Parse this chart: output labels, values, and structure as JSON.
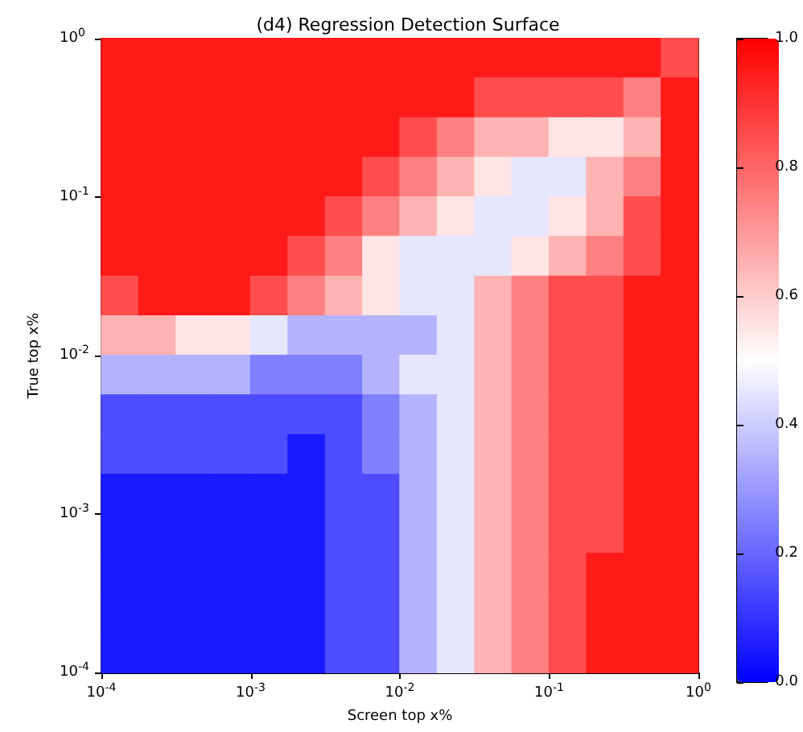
{
  "chart_data": {
    "type": "scatter",
    "title": "(d4) Regression Detection Surface",
    "xlabel": "Screen top x%",
    "ylabel": "True top x%",
    "marker": "square",
    "x": [
      0.000133,
      0.000237,
      0.000422,
      0.00075,
      0.00133,
      0.00237,
      0.00422,
      0.0075,
      0.0133,
      0.0237,
      0.0422,
      0.075,
      0.133,
      0.237,
      0.422,
      0.75,
      0.000133,
      0.000237,
      0.000422,
      0.00075,
      0.00133,
      0.00237,
      0.00422,
      0.0075,
      0.0133,
      0.0237,
      0.0422,
      0.075,
      0.133,
      0.237,
      0.422,
      0.75,
      0.000133,
      0.000237,
      0.000422,
      0.00075,
      0.00133,
      0.00237,
      0.00422,
      0.0075,
      0.0133,
      0.0237,
      0.0422,
      0.075,
      0.133,
      0.237,
      0.422,
      0.75,
      0.000133,
      0.000237,
      0.000422,
      0.00075,
      0.00133,
      0.00237,
      0.00422,
      0.0075,
      0.0133,
      0.0237,
      0.0422,
      0.075,
      0.133,
      0.237,
      0.422,
      0.75,
      0.000133,
      0.000237,
      0.000422,
      0.00075,
      0.00133,
      0.00237,
      0.00422,
      0.0075,
      0.0133,
      0.0237,
      0.0422,
      0.075,
      0.133,
      0.237,
      0.422,
      0.75,
      0.000133,
      0.000237,
      0.000422,
      0.00075,
      0.00133,
      0.00237,
      0.00422,
      0.0075,
      0.0133,
      0.0237,
      0.0422,
      0.075,
      0.133,
      0.237,
      0.422,
      0.75,
      0.000133,
      0.000237,
      0.000422,
      0.00075,
      0.00133,
      0.00237,
      0.00422,
      0.0075,
      0.0133,
      0.0237,
      0.0422,
      0.075,
      0.133,
      0.237,
      0.422,
      0.75,
      0.000133,
      0.000237,
      0.000422,
      0.00075,
      0.00133,
      0.00237,
      0.00422,
      0.0075,
      0.0133,
      0.0237,
      0.0422,
      0.075,
      0.133,
      0.237,
      0.422,
      0.75,
      0.000133,
      0.000237,
      0.000422,
      0.00075,
      0.00133,
      0.00237,
      0.00422,
      0.0075,
      0.0133,
      0.0237,
      0.0422,
      0.075,
      0.133,
      0.237,
      0.422,
      0.75,
      0.000133,
      0.000237,
      0.000422,
      0.00075,
      0.00133,
      0.00237,
      0.00422,
      0.0075,
      0.0133,
      0.0237,
      0.0422,
      0.075,
      0.133,
      0.237,
      0.422,
      0.75,
      0.000133,
      0.000237,
      0.000422,
      0.00075,
      0.00133,
      0.00237,
      0.00422,
      0.0075,
      0.0133,
      0.0237,
      0.0422,
      0.075,
      0.133,
      0.237,
      0.422,
      0.75,
      0.000133,
      0.000237,
      0.000422,
      0.00075,
      0.00133,
      0.00237,
      0.00422,
      0.0075,
      0.0133,
      0.0237,
      0.0422,
      0.075,
      0.133,
      0.237,
      0.422,
      0.75,
      0.000133,
      0.000237,
      0.000422,
      0.00075,
      0.00133,
      0.00237,
      0.00422,
      0.0075,
      0.0133,
      0.0237,
      0.0422,
      0.075,
      0.133,
      0.237,
      0.422,
      0.75,
      0.000133,
      0.000237,
      0.000422,
      0.00075,
      0.00133,
      0.00237,
      0.00422,
      0.0075,
      0.0133,
      0.0237,
      0.0422,
      0.075,
      0.133,
      0.237,
      0.422,
      0.75,
      0.000133,
      0.000237,
      0.000422,
      0.00075,
      0.00133,
      0.00237,
      0.00422,
      0.0075,
      0.0133,
      0.0237,
      0.0422,
      0.075,
      0.133,
      0.237,
      0.422,
      0.75,
      0.000133,
      0.000237,
      0.000422,
      0.00075,
      0.00133,
      0.00237,
      0.00422,
      0.0075,
      0.0133,
      0.0237,
      0.0422,
      0.075,
      0.133,
      0.237,
      0.422,
      0.75
    ],
    "values": [
      0.75,
      0.75,
      0.75,
      0.75,
      0.75,
      0.75,
      0.75,
      0.75,
      0.75,
      0.75,
      0.75,
      0.75,
      0.75,
      0.75,
      0.75,
      0.75,
      0.422,
      0.422,
      0.422,
      0.422,
      0.422,
      0.422,
      0.422,
      0.422,
      0.422,
      0.422,
      0.422,
      0.422,
      0.422,
      0.422,
      0.422,
      0.422,
      0.237,
      0.237,
      0.237,
      0.237,
      0.237,
      0.237,
      0.237,
      0.237,
      0.237,
      0.237,
      0.237,
      0.237,
      0.237,
      0.237,
      0.237,
      0.237,
      0.133,
      0.133,
      0.133,
      0.133,
      0.133,
      0.133,
      0.133,
      0.133,
      0.133,
      0.133,
      0.133,
      0.133,
      0.133,
      0.133,
      0.133,
      0.133,
      0.075,
      0.075,
      0.075,
      0.075,
      0.075,
      0.075,
      0.075,
      0.075,
      0.075,
      0.075,
      0.075,
      0.075,
      0.075,
      0.075,
      0.075,
      0.075,
      0.0422,
      0.0422,
      0.0422,
      0.0422,
      0.0422,
      0.0422,
      0.0422,
      0.0422,
      0.0422,
      0.0422,
      0.0422,
      0.0422,
      0.0422,
      0.0422,
      0.0422,
      0.0422,
      0.0237,
      0.0237,
      0.0237,
      0.0237,
      0.0237,
      0.0237,
      0.0237,
      0.0237,
      0.0237,
      0.0237,
      0.0237,
      0.0237,
      0.0237,
      0.0237,
      0.0237,
      0.0237,
      0.0133,
      0.0133,
      0.0133,
      0.0133,
      0.0133,
      0.0133,
      0.0133,
      0.0133,
      0.0133,
      0.0133,
      0.0133,
      0.0133,
      0.0133,
      0.0133,
      0.0133,
      0.0133,
      0.0075,
      0.0075,
      0.0075,
      0.0075,
      0.0075,
      0.0075,
      0.0075,
      0.0075,
      0.0075,
      0.0075,
      0.0075,
      0.0075,
      0.0075,
      0.0075,
      0.0075,
      0.0075,
      0.00422,
      0.00422,
      0.00422,
      0.00422,
      0.00422,
      0.00422,
      0.00422,
      0.00422,
      0.00422,
      0.00422,
      0.00422,
      0.00422,
      0.00422,
      0.00422,
      0.00422,
      0.00422,
      0.00237,
      0.00237,
      0.00237,
      0.00237,
      0.00237,
      0.00237,
      0.00237,
      0.00237,
      0.00237,
      0.00237,
      0.00237,
      0.00237,
      0.00237,
      0.00237,
      0.00237,
      0.00237,
      0.00133,
      0.00133,
      0.00133,
      0.00133,
      0.00133,
      0.00133,
      0.00133,
      0.00133,
      0.00133,
      0.00133,
      0.00133,
      0.00133,
      0.00133,
      0.00133,
      0.00133,
      0.00133,
      0.00075,
      0.00075,
      0.00075,
      0.00075,
      0.00075,
      0.00075,
      0.00075,
      0.00075,
      0.00075,
      0.00075,
      0.00075,
      0.00075,
      0.00075,
      0.00075,
      0.00075,
      0.00075,
      0.000422,
      0.000422,
      0.000422,
      0.000422,
      0.000422,
      0.000422,
      0.000422,
      0.000422,
      0.000422,
      0.000422,
      0.000422,
      0.000422,
      0.000422,
      0.000422,
      0.000422,
      0.000422,
      0.000237,
      0.000237,
      0.000237,
      0.000237,
      0.000237,
      0.000237,
      0.000237,
      0.000237,
      0.000237,
      0.000237,
      0.000237,
      0.000237,
      0.000237,
      0.000237,
      0.000237,
      0.000237,
      0.000133,
      0.000133,
      0.000133,
      0.000133,
      0.000133,
      0.000133,
      0.000133,
      0.000133,
      0.000133,
      0.000133,
      0.000133,
      0.000133,
      0.000133,
      0.000133,
      0.000133,
      0.000133
    ],
    "cvalues": [
      0.95,
      0.95,
      0.95,
      0.95,
      0.95,
      0.95,
      0.95,
      0.95,
      0.95,
      0.95,
      0.95,
      0.95,
      0.95,
      0.95,
      0.95,
      0.85,
      0.95,
      0.95,
      0.95,
      0.95,
      0.95,
      0.95,
      0.95,
      0.95,
      0.95,
      0.95,
      0.85,
      0.85,
      0.85,
      0.85,
      0.75,
      0.95,
      0.95,
      0.95,
      0.95,
      0.95,
      0.95,
      0.95,
      0.95,
      0.95,
      0.85,
      0.75,
      0.65,
      0.65,
      0.55,
      0.55,
      0.65,
      0.95,
      0.95,
      0.95,
      0.95,
      0.95,
      0.95,
      0.95,
      0.95,
      0.85,
      0.75,
      0.65,
      0.55,
      0.45,
      0.45,
      0.65,
      0.75,
      0.95,
      0.95,
      0.95,
      0.95,
      0.95,
      0.95,
      0.95,
      0.85,
      0.75,
      0.65,
      0.55,
      0.45,
      0.45,
      0.55,
      0.65,
      0.85,
      0.95,
      0.95,
      0.95,
      0.95,
      0.95,
      0.95,
      0.85,
      0.75,
      0.55,
      0.45,
      0.45,
      0.45,
      0.55,
      0.65,
      0.75,
      0.85,
      0.95,
      0.85,
      0.95,
      0.95,
      0.95,
      0.85,
      0.75,
      0.65,
      0.55,
      0.45,
      0.45,
      0.65,
      0.75,
      0.85,
      0.85,
      0.95,
      0.95,
      0.65,
      0.65,
      0.55,
      0.55,
      0.45,
      0.35,
      0.35,
      0.35,
      0.35,
      0.45,
      0.65,
      0.75,
      0.85,
      0.85,
      0.95,
      0.95,
      0.35,
      0.35,
      0.35,
      0.35,
      0.25,
      0.25,
      0.25,
      0.35,
      0.45,
      0.45,
      0.65,
      0.75,
      0.85,
      0.85,
      0.95,
      0.95,
      0.15,
      0.15,
      0.15,
      0.15,
      0.15,
      0.15,
      0.15,
      0.25,
      0.35,
      0.45,
      0.65,
      0.75,
      0.85,
      0.85,
      0.95,
      0.95,
      0.15,
      0.15,
      0.15,
      0.15,
      0.15,
      0.05,
      0.15,
      0.25,
      0.35,
      0.45,
      0.65,
      0.75,
      0.85,
      0.85,
      0.95,
      0.95,
      0.05,
      0.05,
      0.05,
      0.05,
      0.05,
      0.05,
      0.15,
      0.15,
      0.35,
      0.45,
      0.65,
      0.75,
      0.85,
      0.85,
      0.95,
      0.95,
      0.05,
      0.05,
      0.05,
      0.05,
      0.05,
      0.05,
      0.15,
      0.15,
      0.35,
      0.45,
      0.65,
      0.75,
      0.85,
      0.85,
      0.95,
      0.95,
      0.05,
      0.05,
      0.05,
      0.05,
      0.05,
      0.05,
      0.15,
      0.15,
      0.35,
      0.45,
      0.65,
      0.75,
      0.85,
      0.95,
      0.95,
      0.95,
      0.05,
      0.05,
      0.05,
      0.05,
      0.05,
      0.05,
      0.15,
      0.15,
      0.35,
      0.45,
      0.65,
      0.75,
      0.85,
      0.95,
      0.95,
      0.95,
      0.05,
      0.05,
      0.05,
      0.05,
      0.05,
      0.05,
      0.15,
      0.15,
      0.35,
      0.45,
      0.65,
      0.75,
      0.85,
      0.95,
      0.95,
      0.95
    ],
    "clim": [
      0,
      1
    ],
    "cticks": [
      {
        "value": 0,
        "label": "0.0"
      },
      {
        "value": 0.2,
        "label": "0.2"
      },
      {
        "value": 0.4,
        "label": "0.4"
      },
      {
        "value": 0.6,
        "label": "0.6"
      },
      {
        "value": 0.8,
        "label": "0.8"
      },
      {
        "value": 1,
        "label": "1.0"
      }
    ],
    "log": "xy",
    "xlim": [
      0.0001,
      1
    ],
    "xticks": [
      {
        "value": 0.0001,
        "label": "10$^{-4}$"
      },
      {
        "value": 0.001,
        "label": "10$^{-3}$"
      },
      {
        "value": 0.01,
        "label": "10$^{-2}$"
      },
      {
        "value": 0.1,
        "label": "10$^{-1}$"
      },
      {
        "value": 1,
        "label": "10$^{0}$"
      }
    ],
    "ylim": [
      0.0001,
      1
    ],
    "yticks": [
      {
        "value": 0.0001,
        "label": "10$^{-4}$"
      },
      {
        "value": 0.001,
        "label": "10$^{-3}$"
      },
      {
        "value": 0.01,
        "label": "10$^{-2}$"
      },
      {
        "value": 0.1,
        "label": "10$^{-1}$"
      },
      {
        "value": 1,
        "label": "10$^{0}$"
      }
    ]
  }
}
